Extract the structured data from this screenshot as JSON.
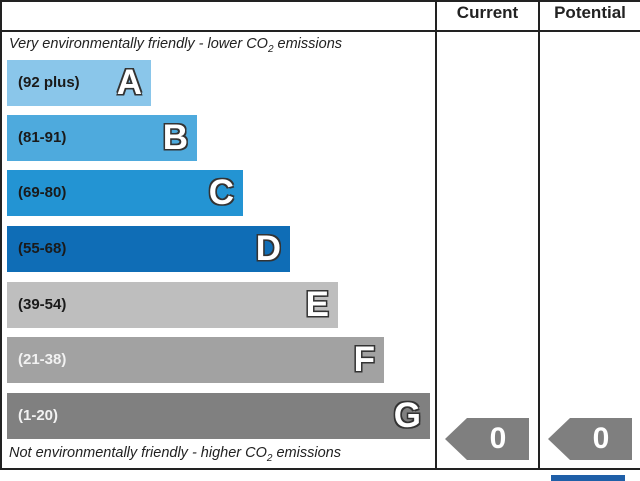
{
  "chart_data": {
    "type": "table",
    "columns": [
      "Current",
      "Potential"
    ],
    "top_caption": "Very environmentally friendly - lower CO",
    "bottom_caption": "Not environmentally friendly - higher CO",
    "caption_subscript": "2",
    "caption_suffix": " emissions",
    "bands": [
      {
        "letter": "A",
        "range": "(92 plus)",
        "color": "#8ac6ea",
        "text_color": "#1a1a1a"
      },
      {
        "letter": "B",
        "range": "(81-91)",
        "color": "#4eaadd",
        "text_color": "#1a1a1a"
      },
      {
        "letter": "C",
        "range": "(69-80)",
        "color": "#2394d3",
        "text_color": "#1a1a1a"
      },
      {
        "letter": "D",
        "range": "(55-68)",
        "color": "#0f6db6",
        "text_color": "#1a1a1a"
      },
      {
        "letter": "E",
        "range": "(39-54)",
        "color": "#bebebe",
        "text_color": "#1a1a1a"
      },
      {
        "letter": "F",
        "range": "(21-38)",
        "color": "#a2a2a2",
        "text_color": "#f2f2f2"
      },
      {
        "letter": "G",
        "range": "(1-20)",
        "color": "#808080",
        "text_color": "#f2f2f2"
      }
    ],
    "current": {
      "value": "0",
      "band": "G"
    },
    "potential": {
      "value": "0",
      "band": "G"
    },
    "arrow_color": "#7f7f7f"
  }
}
